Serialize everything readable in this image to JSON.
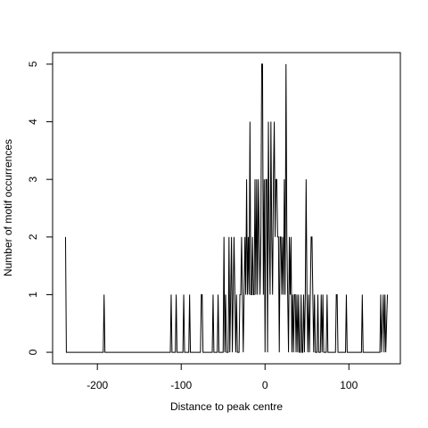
{
  "chart_data": {
    "type": "line",
    "xlabel": "Distance to peak centre",
    "ylabel": "Number of motif occurrences",
    "color": "#000000",
    "x": [
      -238,
      -237,
      -193,
      -192,
      -191,
      -113,
      -112,
      -111,
      -107,
      -106,
      -105,
      -98,
      -97,
      -96,
      -91,
      -90,
      -89,
      -77,
      -76,
      -75,
      -74,
      -63,
      -62,
      -61,
      -57,
      -56,
      -55,
      -50,
      -49,
      -48,
      -47,
      -46,
      -44,
      -43,
      -42,
      -41,
      -40,
      -39,
      -38,
      -37,
      -36,
      -35,
      -34,
      -33,
      -31,
      -30,
      -29,
      -28,
      -27,
      -26,
      -25,
      -24,
      -23,
      -22,
      -21,
      -20,
      -19,
      -18,
      -17,
      -16,
      -15,
      -14,
      -13,
      -12,
      -11,
      -10,
      -9,
      -8,
      -7,
      -6,
      -5,
      -4,
      -3,
      -2,
      -1,
      0,
      1,
      2,
      3,
      4,
      5,
      6,
      7,
      8,
      9,
      10,
      11,
      12,
      13,
      14,
      15,
      16,
      17,
      18,
      19,
      20,
      21,
      22,
      23,
      24,
      25,
      26,
      27,
      28,
      29,
      30,
      31,
      32,
      33,
      34,
      35,
      36,
      37,
      38,
      39,
      40,
      41,
      42,
      43,
      44,
      45,
      46,
      47,
      48,
      49,
      50,
      51,
      52,
      53,
      54,
      55,
      56,
      57,
      58,
      59,
      60,
      62,
      63,
      64,
      66,
      67,
      68,
      69,
      70,
      73,
      74,
      75,
      84,
      85,
      86,
      87,
      96,
      97,
      98,
      115,
      116,
      117,
      137,
      138,
      139,
      141,
      142,
      143,
      144,
      146
    ],
    "values": [
      2,
      0,
      0,
      1,
      0,
      0,
      1,
      0,
      0,
      1,
      0,
      0,
      1,
      0,
      0,
      1,
      0,
      0,
      1,
      1,
      0,
      0,
      1,
      0,
      0,
      1,
      0,
      0,
      2,
      0,
      1,
      0,
      0,
      2,
      0,
      1,
      2,
      0,
      1,
      2,
      1,
      0,
      1,
      0,
      0,
      1,
      1,
      2,
      1,
      0,
      1,
      2,
      1,
      3,
      1,
      2,
      1,
      4,
      1,
      1,
      2,
      1,
      1,
      3,
      1,
      3,
      1,
      3,
      2,
      1,
      2,
      5,
      5,
      1,
      3,
      0,
      3,
      3,
      0,
      4,
      2,
      1,
      4,
      2,
      1,
      3,
      4,
      2,
      3,
      3,
      2,
      2,
      0,
      2,
      2,
      1,
      2,
      1,
      3,
      1,
      5,
      2,
      1,
      0,
      2,
      1,
      2,
      0,
      1,
      0,
      1,
      1,
      0,
      1,
      0,
      1,
      0,
      0,
      1,
      0,
      0,
      1,
      0,
      1,
      3,
      1,
      0,
      1,
      0,
      1,
      2,
      2,
      1,
      0,
      1,
      0,
      0,
      1,
      0,
      0,
      1,
      0,
      1,
      0,
      0,
      1,
      0,
      0,
      1,
      1,
      0,
      0,
      1,
      0,
      0,
      1,
      0,
      0,
      1,
      0,
      1,
      0,
      1,
      0,
      1
    ],
    "xlim": [
      -253.4,
      161.4
    ],
    "xticks": [
      -200,
      -100,
      0,
      100
    ],
    "ylim": [
      -0.2,
      5.2
    ],
    "yticks": [
      0,
      1,
      2,
      3,
      4,
      5
    ],
    "grid": false
  }
}
